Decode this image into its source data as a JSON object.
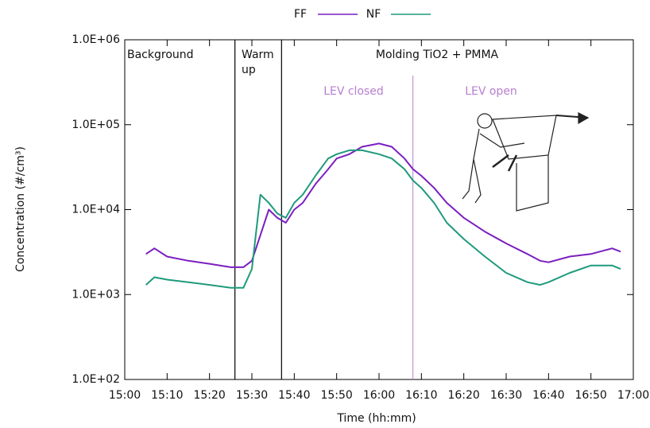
{
  "chart_data": {
    "type": "line",
    "x_label": "Time (hh:mm)",
    "y_label": "Concentration (#/cm³)",
    "log_scale": true,
    "legend": "top",
    "xlim": [
      "15:00",
      "17:00"
    ],
    "xticks": [
      "15:00",
      "15:10",
      "15:20",
      "15:30",
      "15:40",
      "15:50",
      "16:00",
      "16:10",
      "16:20",
      "16:30",
      "16:40",
      "16:50",
      "17:00"
    ],
    "ylim": [
      100,
      1000000
    ],
    "yticks": [
      {
        "value": 100,
        "label": "1.0E+02"
      },
      {
        "value": 1000,
        "label": "1.0E+03"
      },
      {
        "value": 10000,
        "label": "1.0E+04"
      },
      {
        "value": 100000,
        "label": "1.0E+05"
      },
      {
        "value": 1000000,
        "label": "1.0E+06"
      }
    ],
    "x": [
      "15:05",
      "15:07",
      "15:10",
      "15:15",
      "15:20",
      "15:25",
      "15:28",
      "15:30",
      "15:32",
      "15:34",
      "15:36",
      "15:38",
      "15:40",
      "15:42",
      "15:45",
      "15:48",
      "15:50",
      "15:53",
      "15:56",
      "16:00",
      "16:03",
      "16:06",
      "16:08",
      "16:10",
      "16:13",
      "16:16",
      "16:20",
      "16:25",
      "16:30",
      "16:35",
      "16:38",
      "16:40",
      "16:45",
      "16:50",
      "16:55",
      "16:57"
    ],
    "series": [
      {
        "name": "FF",
        "color": "#7a1fc0",
        "values": [
          3000,
          3500,
          2800,
          2500,
          2300,
          2100,
          2100,
          2500,
          5000,
          10000,
          8000,
          7000,
          10000,
          12000,
          20000,
          30000,
          40000,
          45000,
          55000,
          60000,
          55000,
          40000,
          30000,
          25000,
          18000,
          12000,
          8000,
          5500,
          4000,
          3000,
          2500,
          2400,
          2800,
          3000,
          3500,
          3200
        ]
      },
      {
        "name": "NF",
        "color": "#1f9a7c",
        "values": [
          1300,
          1600,
          1500,
          1400,
          1300,
          1200,
          1200,
          2000,
          15000,
          12000,
          9000,
          8000,
          12000,
          15000,
          25000,
          40000,
          45000,
          50000,
          50000,
          45000,
          40000,
          30000,
          22000,
          18000,
          12000,
          7000,
          4500,
          2800,
          1800,
          1400,
          1300,
          1400,
          1800,
          2200,
          2200,
          2000
        ]
      }
    ],
    "event_lines": [
      "15:26",
      "15:37"
    ],
    "lev_line": "16:08",
    "annotations": [
      "Background",
      "Warm",
      "up",
      "Molding TiO2 + PMMA",
      "LEV closed",
      "LEV open"
    ]
  }
}
